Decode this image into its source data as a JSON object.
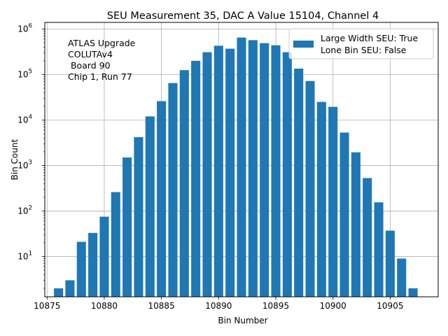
{
  "chart_data": {
    "type": "bar",
    "title": "SEU Measurement 35, DAC A Value 15104, Channel 4",
    "xlabel": "Bin Number",
    "ylabel": "Bin Count",
    "yscale": "log",
    "xlim": [
      10874.8,
      10909.2
    ],
    "ylim": [
      1.3,
      1400000
    ],
    "grid": true,
    "bar_color": "#1f77b4",
    "x": [
      10876,
      10877,
      10878,
      10879,
      10880,
      10881,
      10882,
      10883,
      10884,
      10885,
      10886,
      10887,
      10888,
      10889,
      10890,
      10891,
      10892,
      10893,
      10894,
      10895,
      10896,
      10897,
      10898,
      10899,
      10900,
      10901,
      10902,
      10903,
      10904,
      10905,
      10906,
      10907
    ],
    "values": [
      2,
      3,
      21,
      33,
      75,
      260,
      1500,
      4200,
      12000,
      26000,
      65000,
      125000,
      200000,
      310000,
      430000,
      370000,
      650000,
      570000,
      490000,
      440000,
      310000,
      135000,
      72000,
      25000,
      19500,
      5300,
      1950,
      530,
      155,
      37,
      9,
      2
    ],
    "x_ticks": [
      10875,
      10880,
      10885,
      10890,
      10895,
      10900,
      10905
    ],
    "y_ticks": [
      {
        "value": 10,
        "base": "10",
        "exp": "1"
      },
      {
        "value": 100,
        "base": "10",
        "exp": "2"
      },
      {
        "value": 1000,
        "base": "10",
        "exp": "3"
      },
      {
        "value": 10000,
        "base": "10",
        "exp": "4"
      },
      {
        "value": 100000,
        "base": "10",
        "exp": "5"
      },
      {
        "value": 1000000,
        "base": "10",
        "exp": "6"
      }
    ],
    "legend": {
      "placement": "top-right",
      "entries": [
        "Large Width SEU: True",
        "Lone Bin SEU: False"
      ]
    },
    "annotation": {
      "placement": "top-left",
      "lines": [
        "ATLAS Upgrade",
        "COLUTAv4",
        " Board 90",
        "Chip 1, Run 77"
      ]
    }
  }
}
